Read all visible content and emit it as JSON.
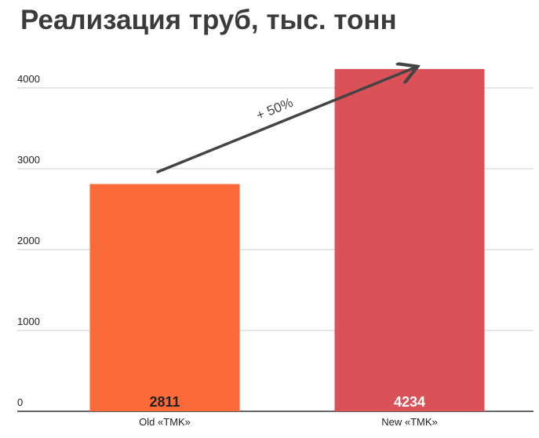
{
  "chart_data": {
    "type": "bar",
    "title": "Реализация труб, тыс. тонн",
    "categories": [
      "Old «TMK»",
      "New «TMK»"
    ],
    "values": [
      2811,
      4234
    ],
    "data_labels": [
      "2811",
      "4234"
    ],
    "ylim": [
      0,
      4200
    ],
    "yticks": [
      0,
      1000,
      2000,
      3000,
      4000
    ],
    "xlabel": "",
    "ylabel": "",
    "grid": true,
    "legend": "none",
    "bar_colors": [
      "#fd6a3a",
      "#da5157"
    ],
    "data_label_colors": [
      "#222222",
      "#ffffff"
    ],
    "annotation": {
      "text": "+ 50%",
      "type": "arrow",
      "from_category": "Old «TMK»",
      "to_category": "New «TMK»",
      "color": "#444444"
    }
  }
}
